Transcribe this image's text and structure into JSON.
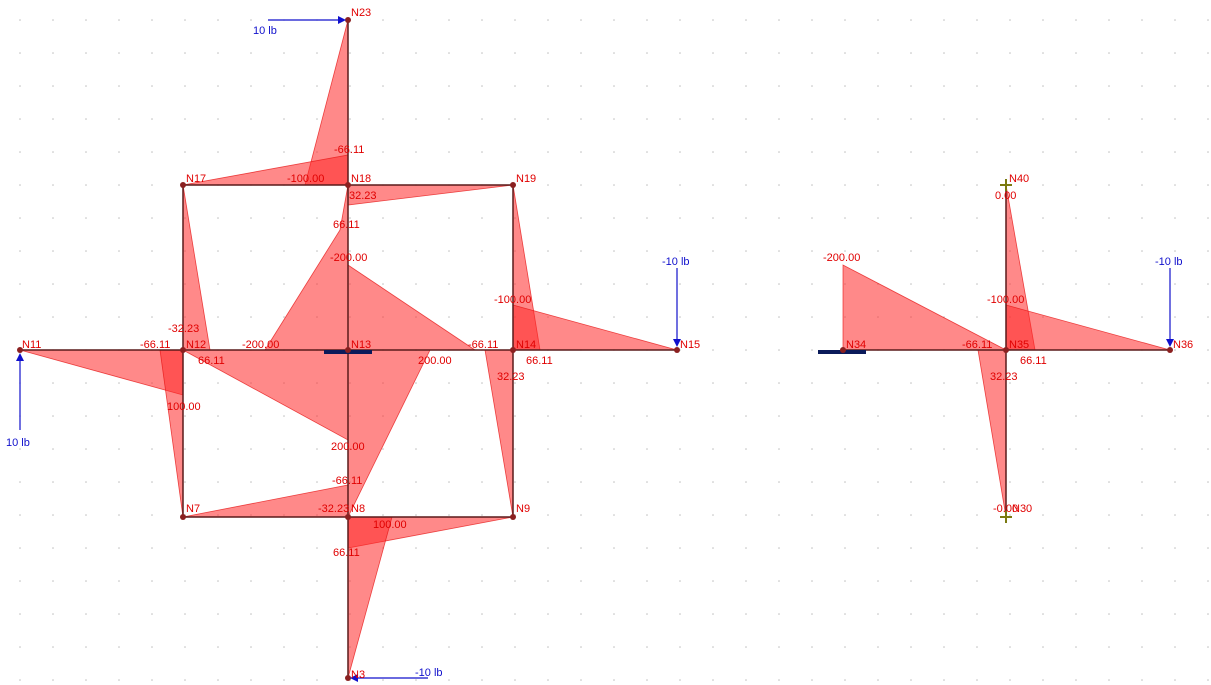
{
  "nodes": {
    "n11": "N11",
    "n12": "N12",
    "n13": "N13",
    "n14": "N14",
    "n15": "N15",
    "n17": "N17",
    "n18": "N18",
    "n19": "N19",
    "n23": "N23",
    "n7": "N7",
    "n8": "N8",
    "n9": "N9",
    "n3": "N3",
    "n34": "N34",
    "n35": "N35",
    "n36": "N36",
    "n40": "N40",
    "n30": "N30"
  },
  "loads": {
    "top": "10 lb",
    "left": "10 lb",
    "right": "-10 lb",
    "bottom": "-10 lb",
    "right2": "-10 lb"
  },
  "values": {
    "n18_top": "-66.11",
    "n17_n18": "-100.00",
    "n18_under": "32.23",
    "n18_down": "66.11",
    "n13_up": "-200.00",
    "n14_up": "-100.00",
    "n12_up": "-32.23",
    "n12_left": "-66.11",
    "n12_right": "66.11",
    "n13_left": "-200.00",
    "n14_left": "-66.11",
    "n14_right": "66.11",
    "n13_right": "200.00",
    "n14_down": "32.23",
    "n12_down": "100.00",
    "n8_up200": "200.00",
    "n8_top": "-66.11",
    "n8_left": "-32.23",
    "n8_right": "100.00",
    "n8_down": "66.11",
    "n34_peak": "-200.00",
    "n35_up": "-100.00",
    "n35_left": "-66.11",
    "n35_right": "66.11",
    "n35_down": "32.23",
    "n40_val": "0.00",
    "n30_val": "-0.00"
  }
}
